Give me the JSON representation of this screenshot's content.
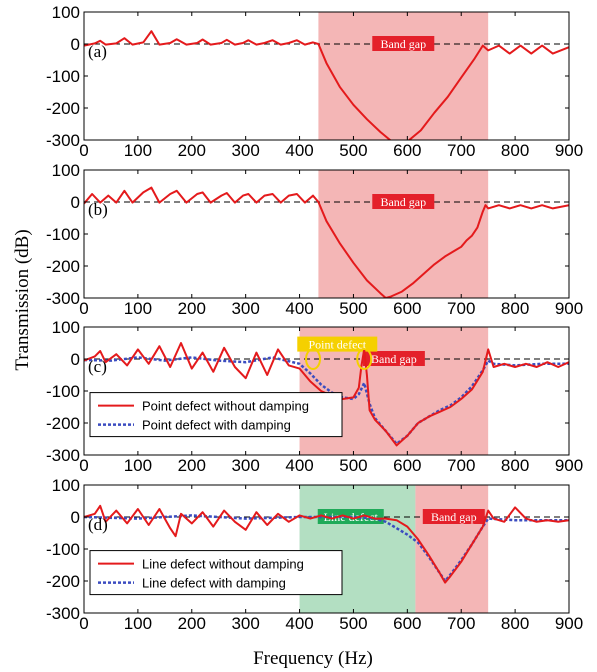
{
  "chart_data": {
    "type": "line",
    "xlabel": "Frequency (Hz)",
    "ylabel": "Transmission (dB)",
    "xlim": [
      0,
      900
    ],
    "ylim": [
      -300,
      100
    ],
    "xticks": [
      0,
      100,
      200,
      300,
      400,
      500,
      600,
      700,
      800,
      900
    ],
    "yticks": [
      100,
      0,
      -100,
      -200,
      -300
    ],
    "reference_line": {
      "y": 0,
      "style": "dashed"
    },
    "colors": {
      "undamped": "#e41a1c",
      "damped": "#3b4cc0",
      "band_gap": "#f4b6b6",
      "line_defect": "#b3dfc2",
      "point_marker": "#f5d000"
    },
    "panels": [
      {
        "label": "(a)",
        "regions": [
          {
            "text": "Band gap",
            "from": 435,
            "to": 750,
            "kind": "band_gap"
          }
        ],
        "series": [
          {
            "name": "",
            "color": "#e41a1c",
            "x": [
              0,
              20,
              30,
              40,
              60,
              75,
              90,
              110,
              125,
              140,
              160,
              172,
              190,
              210,
              220,
              235,
              255,
              265,
              280,
              295,
              305,
              320,
              335,
              350,
              365,
              380,
              395,
              410,
              425,
              435,
              450,
              475,
              500,
              525,
              550,
              575,
              600,
              625,
              650,
              675,
              700,
              725,
              740,
              750,
              770,
              790,
              810,
              830,
              850,
              870,
              900
            ],
            "y": [
              -5,
              2,
              10,
              -2,
              2,
              18,
              -2,
              5,
              40,
              -2,
              3,
              15,
              -2,
              3,
              14,
              -2,
              3,
              13,
              -2,
              3,
              12,
              -2,
              3,
              12,
              -2,
              3,
              12,
              -2,
              5,
              0,
              -60,
              -135,
              -190,
              -235,
              -275,
              -310,
              -305,
              -270,
              -215,
              -165,
              -105,
              -45,
              -5,
              -20,
              -5,
              -30,
              -5,
              -30,
              -5,
              -30,
              -10
            ]
          }
        ]
      },
      {
        "label": "(b)",
        "regions": [
          {
            "text": "Band gap",
            "from": 435,
            "to": 750,
            "kind": "band_gap"
          }
        ],
        "series": [
          {
            "name": "",
            "color": "#e41a1c",
            "x": [
              0,
              15,
              30,
              45,
              60,
              75,
              90,
              110,
              125,
              140,
              160,
              172,
              190,
              210,
              220,
              235,
              255,
              265,
              280,
              295,
              305,
              320,
              335,
              350,
              365,
              380,
              395,
              410,
              425,
              435,
              450,
              475,
              500,
              525,
              550,
              560,
              570,
              590,
              610,
              630,
              650,
              670,
              690,
              700,
              710,
              720,
              730,
              740,
              745,
              750,
              770,
              790,
              810,
              830,
              850,
              870,
              900
            ],
            "y": [
              -5,
              25,
              -2,
              20,
              -2,
              35,
              -2,
              30,
              45,
              -2,
              25,
              35,
              -2,
              25,
              30,
              -2,
              20,
              28,
              -2,
              20,
              25,
              -2,
              20,
              25,
              -2,
              20,
              25,
              -2,
              20,
              0,
              -60,
              -130,
              -190,
              -245,
              -285,
              -300,
              -295,
              -280,
              -255,
              -225,
              -195,
              -170,
              -150,
              -140,
              -120,
              -105,
              -80,
              -30,
              -10,
              -20,
              -10,
              -20,
              -10,
              -20,
              -10,
              -20,
              -10
            ]
          }
        ]
      },
      {
        "label": "(c)",
        "regions": [
          {
            "text": "Band gap",
            "from": 400,
            "to": 750,
            "kind": "band_gap"
          },
          {
            "text": "Point defect",
            "from": 400,
            "to": 540,
            "kind": "point_defect"
          }
        ],
        "defect_markers": [
          425,
          520
        ],
        "legend": [
          "Point defect without damping",
          "Point defect with damping"
        ],
        "series": [
          {
            "name": "Point defect without damping",
            "color": "#e41a1c",
            "x": [
              0,
              20,
              30,
              40,
              60,
              80,
              100,
              120,
              140,
              160,
              180,
              200,
              220,
              240,
              260,
              280,
              300,
              320,
              340,
              360,
              380,
              400,
              420,
              440,
              460,
              480,
              500,
              510,
              515,
              520,
              525,
              530,
              540,
              560,
              580,
              600,
              620,
              640,
              660,
              680,
              700,
              720,
              740,
              750,
              760,
              780,
              800,
              820,
              840,
              860,
              880,
              900
            ],
            "y": [
              -5,
              8,
              25,
              -10,
              15,
              -20,
              30,
              -15,
              40,
              -25,
              50,
              -30,
              20,
              -40,
              35,
              -25,
              -60,
              20,
              -50,
              30,
              -20,
              -30,
              -70,
              -100,
              -115,
              -125,
              -120,
              -90,
              -20,
              30,
              -50,
              -160,
              -190,
              -225,
              -270,
              -240,
              -200,
              -180,
              -165,
              -150,
              -125,
              -95,
              -40,
              30,
              -25,
              -15,
              -25,
              -15,
              -25,
              -10,
              -25,
              -10
            ]
          },
          {
            "name": "Point defect with damping",
            "color": "#3b4cc0",
            "x": [
              0,
              50,
              100,
              150,
              200,
              250,
              300,
              350,
              400,
              420,
              440,
              460,
              480,
              500,
              510,
              520,
              530,
              540,
              560,
              580,
              600,
              620,
              640,
              660,
              680,
              700,
              720,
              740,
              750,
              760,
              800,
              850,
              900
            ],
            "y": [
              -3,
              -5,
              5,
              -5,
              5,
              -5,
              -10,
              5,
              -15,
              -45,
              -80,
              -105,
              -120,
              -125,
              -110,
              -75,
              -140,
              -185,
              -225,
              -265,
              -240,
              -200,
              -180,
              -160,
              -145,
              -120,
              -85,
              -35,
              -5,
              -15,
              -20,
              -15,
              -15
            ]
          }
        ]
      },
      {
        "label": "(d)",
        "regions": [
          {
            "text": "Line defect",
            "from": 400,
            "to": 615,
            "kind": "line_defect"
          },
          {
            "text": "Band gap",
            "from": 615,
            "to": 750,
            "kind": "band_gap"
          }
        ],
        "legend": [
          "Line defect without damping",
          "Line defect with damping"
        ],
        "series": [
          {
            "name": "Line defect without damping",
            "color": "#e41a1c",
            "x": [
              0,
              20,
              30,
              40,
              60,
              80,
              100,
              120,
              140,
              160,
              170,
              180,
              200,
              220,
              240,
              260,
              280,
              300,
              320,
              340,
              360,
              380,
              400,
              420,
              440,
              460,
              480,
              500,
              520,
              540,
              560,
              580,
              600,
              620,
              640,
              660,
              670,
              680,
              700,
              720,
              740,
              750,
              760,
              780,
              800,
              820,
              840,
              860,
              880,
              900
            ],
            "y": [
              0,
              10,
              35,
              -15,
              20,
              -20,
              25,
              -25,
              25,
              -35,
              -60,
              10,
              -20,
              15,
              -30,
              20,
              -15,
              -40,
              15,
              -25,
              10,
              -15,
              5,
              -5,
              5,
              -5,
              5,
              -5,
              5,
              -5,
              -5,
              -10,
              -30,
              -70,
              -120,
              -175,
              -205,
              -185,
              -140,
              -85,
              -30,
              20,
              -5,
              -15,
              30,
              -5,
              -15,
              -10,
              -15,
              -10
            ]
          },
          {
            "name": "Line defect with damping",
            "color": "#3b4cc0",
            "x": [
              0,
              100,
              200,
              300,
              400,
              450,
              500,
              540,
              560,
              580,
              600,
              620,
              640,
              660,
              670,
              680,
              700,
              720,
              740,
              750,
              800,
              850,
              900
            ],
            "y": [
              0,
              -5,
              5,
              -5,
              0,
              0,
              0,
              -5,
              -15,
              -35,
              -55,
              -80,
              -125,
              -175,
              -200,
              -180,
              -135,
              -85,
              -30,
              -5,
              -10,
              -10,
              -10
            ]
          }
        ]
      }
    ]
  }
}
